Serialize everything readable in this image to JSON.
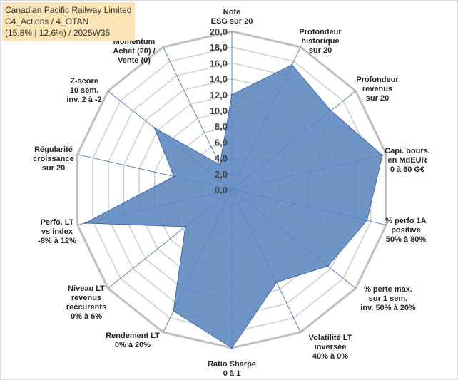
{
  "header": {
    "line1": "Canadian Pacific Railway Limited",
    "line2": "C4_Actions / 4_OTAN",
    "line3": "(15,8% | 12,6%) / 2025W35"
  },
  "colors": {
    "fill": "#5b86bf",
    "stroke": "#3e6aa8",
    "grid": "#d0d0d0",
    "outer": "#bfbfbf",
    "spoke": "#4a7cc4",
    "title_bg": "#fbe5b6"
  },
  "chart_data": {
    "type": "radar",
    "rmin": 0,
    "rmax": 20,
    "step": 2,
    "tick_labels": [
      "0,0",
      "2,0",
      "4,0",
      "6,0",
      "8,0",
      "10,0",
      "12,0",
      "14,0",
      "16,0",
      "18,0",
      "20,0"
    ],
    "axes": [
      {
        "label": [
          "Note",
          "ESG sur 20"
        ],
        "value": 12
      },
      {
        "label": [
          "Profondeur",
          "historique",
          "sur 20"
        ],
        "value": 17.5
      },
      {
        "label": [
          "Profondeur",
          "revenus",
          "sur 20"
        ],
        "value": 16
      },
      {
        "label": [
          "Capi. bours.",
          "en MdEUR",
          "0 à 60 G€"
        ],
        "value": 19.5
      },
      {
        "label": [
          "% perfo 1A",
          "positive",
          "50% à 80%"
        ],
        "value": 17.5
      },
      {
        "label": [
          "% perte max.",
          "sur 1 sem.",
          "inv. 50% à 20%"
        ],
        "value": 15.5
      },
      {
        "label": [
          "Volatilité LT",
          "inversée",
          "40% à 0%"
        ],
        "value": 13
      },
      {
        "label": [
          "Ratio Sharpe",
          "0 à 1"
        ],
        "value": 20
      },
      {
        "label": [
          "Rendement LT",
          "0% à 20%"
        ],
        "value": 17
      },
      {
        "label": [
          "Niveau LT",
          "revenus",
          "reccurents",
          "0% à 6%"
        ],
        "value": 7.5
      },
      {
        "label": [
          "Perfo. LT",
          "vs index",
          "-8% à 12%"
        ],
        "value": 19
      },
      {
        "label": [
          "Régularité",
          "croissance",
          "sur 20"
        ],
        "value": 7.5
      },
      {
        "label": [
          "Z-score",
          "10 sem.",
          "inv. 2 à -2"
        ],
        "value": 12.5
      },
      {
        "label": [
          "Momentum",
          "Achat (20) /",
          "Vente (0)"
        ],
        "value": 3.5
      }
    ]
  }
}
